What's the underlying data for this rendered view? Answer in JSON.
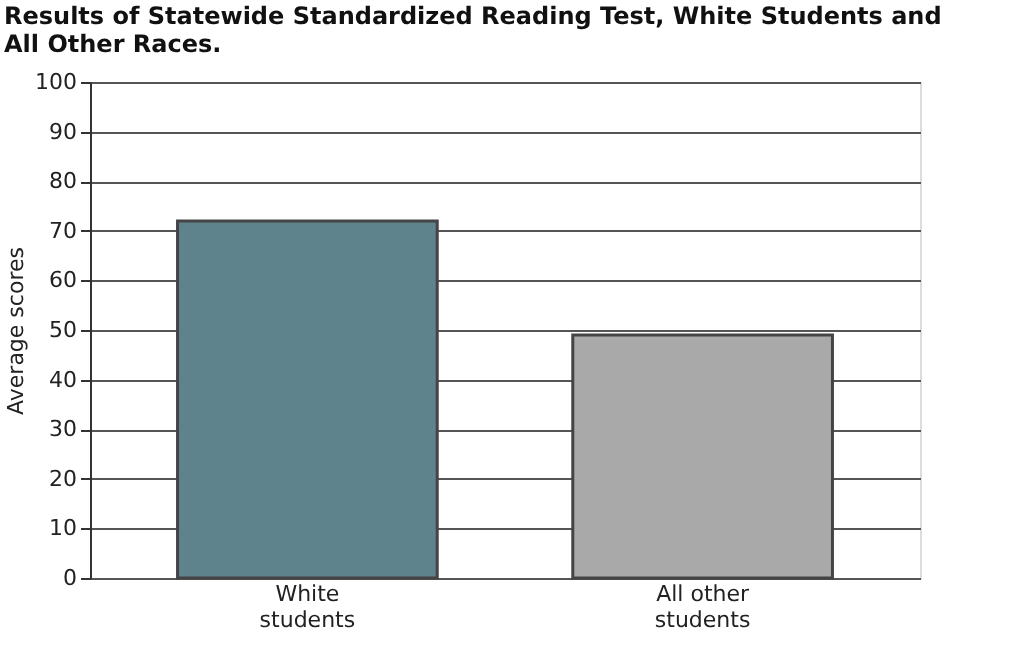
{
  "chart_data": {
    "type": "bar",
    "title": "Results of Statewide Standardized Reading Test, White Students and All Other Races.",
    "ylabel": "Average scores",
    "categories": [
      "White students",
      "All other students"
    ],
    "values": [
      72,
      49
    ],
    "colors": [
      "#5f838c",
      "#a9a9a9"
    ],
    "ylim": [
      0,
      100
    ],
    "yticks": [
      0,
      10,
      20,
      30,
      40,
      50,
      60,
      70,
      80,
      90,
      100
    ],
    "grid": "y"
  }
}
